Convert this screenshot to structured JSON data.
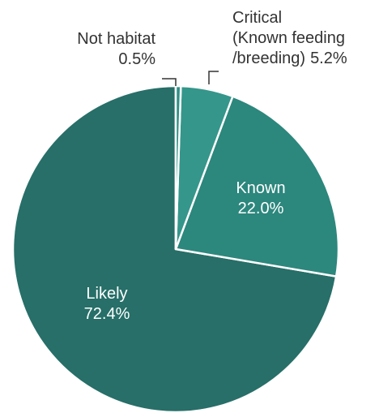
{
  "chart_data": {
    "type": "pie",
    "categories": [
      "Not habitat",
      "Critical\n(Known feeding\n/breeding)",
      "Known",
      "Likely"
    ],
    "values": [
      0.5,
      5.2,
      22.0,
      72.4
    ],
    "value_labels": [
      "0.5%",
      "5.2%",
      "22.0%",
      "72.4%"
    ],
    "colors": [
      "#2f8f86",
      "#35968b",
      "#2c877d",
      "#276f68"
    ]
  }
}
